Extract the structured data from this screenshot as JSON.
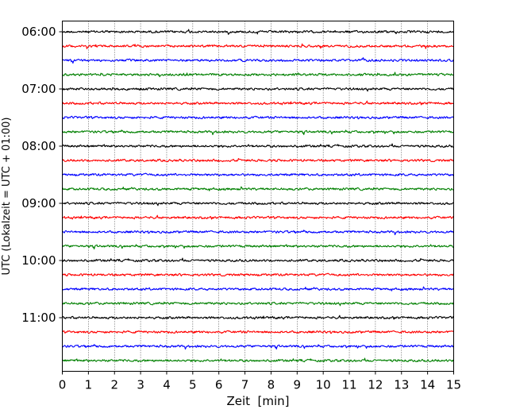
{
  "chart_data": {
    "type": "line",
    "title": "",
    "xlabel": "Zeit  [min]",
    "ylabel": "UTC (Lokalzeit = UTC + 01:00)",
    "xlim": [
      0,
      15
    ],
    "x_ticks": [
      "0",
      "1",
      "2",
      "3",
      "4",
      "5",
      "6",
      "7",
      "8",
      "9",
      "10",
      "11",
      "12",
      "13",
      "14",
      "15"
    ],
    "y_tick_labels": [
      "06:00",
      "07:00",
      "08:00",
      "09:00",
      "10:00",
      "11:00"
    ],
    "trace_interval_minutes": 15,
    "start_time": "06:00",
    "trace_count": 24,
    "trace_colors": [
      "#000000",
      "#ff0000",
      "#0000ff",
      "#008000"
    ],
    "grid": "vertical dotted",
    "legend": "none"
  }
}
